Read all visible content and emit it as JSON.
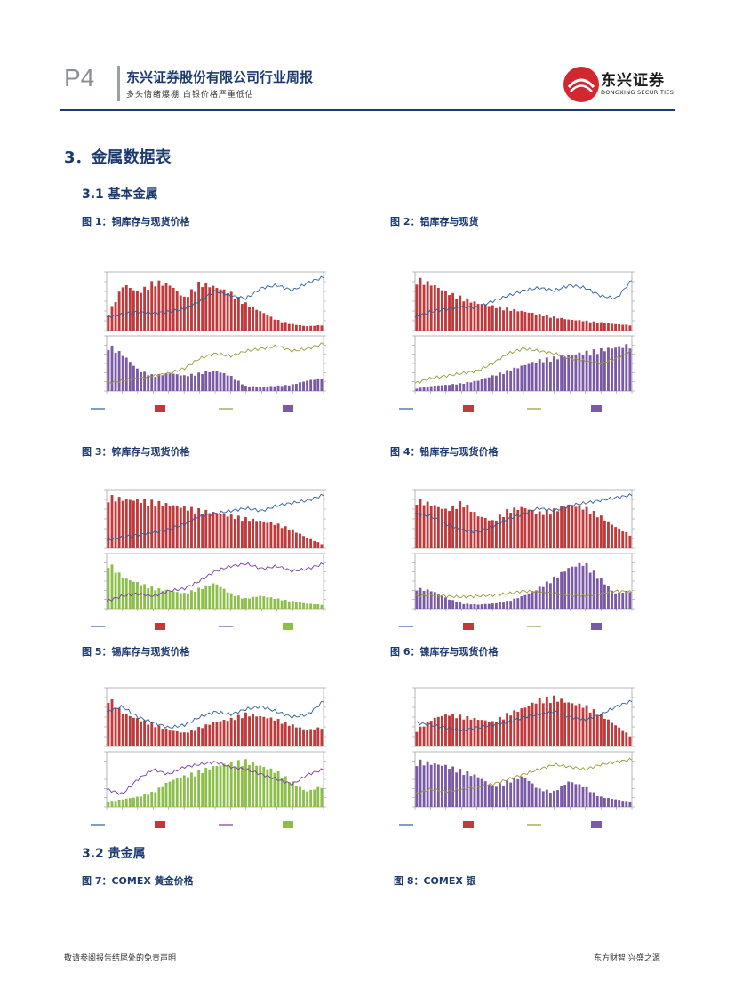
{
  "header": {
    "page_number": "P4",
    "company_title": "东兴证券股份有限公司行业周报",
    "subtitle": "多头情绪爆棚 白银价格严重低估",
    "logo_cn": "东兴证券",
    "logo_en": "DONGXING SECURITIES"
  },
  "sections": {
    "s3": "3．金属数据表",
    "s31": "3.1  基本金属",
    "s32": "3.2  贵金属"
  },
  "figures": {
    "f1": "图 1：铜库存与现货价格",
    "f2": "图 2：铝库存与现货",
    "f3": "图 3：锌库存与现货价格",
    "f4": "图 4：铅库存与现货价格",
    "f5": "图 5：锡库存与现货价格",
    "f6": "图 6：镍库存与现货价格",
    "f7": "图 7：COMEX 黄金价格",
    "f8": "图 8：COMEX 银"
  },
  "footer": {
    "disclaimer": "敬请参阅报告结尾处的免责声明",
    "slogan": "东方财智 兴盛之源"
  },
  "colors": {
    "navy": "#1c3a6e",
    "bar_red": "#c0393b",
    "bar_purple": "#7a5aa6",
    "bar_green": "#8cbf4a",
    "line_blue": "#2d5f9a",
    "line_olive": "#9a9a3a",
    "line_violet": "#7a3aa6",
    "logo_red": "#d0282e"
  },
  "chart_data": [
    {
      "type": "bar",
      "id": "f1",
      "top_values": [
        0.3,
        0.85,
        0.7,
        0.9,
        0.85,
        0.6,
        0.88,
        0.8,
        0.7,
        0.5,
        0.35,
        0.2,
        0.12,
        0.08,
        0.1
      ],
      "top_line": [
        0.2,
        0.25,
        0.3,
        0.28,
        0.3,
        0.35,
        0.5,
        0.7,
        0.6,
        0.55,
        0.75,
        0.8,
        0.7,
        0.85,
        0.95
      ],
      "bottom_values": [
        0.9,
        0.7,
        0.4,
        0.3,
        0.35,
        0.3,
        0.35,
        0.4,
        0.3,
        0.1,
        0.08,
        0.1,
        0.12,
        0.2,
        0.25
      ],
      "bottom_line": [
        0.1,
        0.15,
        0.2,
        0.25,
        0.3,
        0.4,
        0.6,
        0.7,
        0.65,
        0.75,
        0.8,
        0.85,
        0.75,
        0.8,
        0.9
      ],
      "top_color": "#c0393b",
      "bottom_color": "#7a5aa6",
      "bottom_line_color": "#9a9a3a"
    },
    {
      "type": "bar",
      "id": "f2",
      "top_values": [
        0.95,
        0.85,
        0.7,
        0.6,
        0.5,
        0.45,
        0.4,
        0.35,
        0.3,
        0.25,
        0.2,
        0.18,
        0.15,
        0.12,
        0.1
      ],
      "top_line": [
        0.2,
        0.3,
        0.35,
        0.4,
        0.38,
        0.5,
        0.6,
        0.7,
        0.75,
        0.7,
        0.8,
        0.75,
        0.6,
        0.55,
        0.9
      ],
      "bottom_values": [
        0.05,
        0.1,
        0.12,
        0.15,
        0.2,
        0.3,
        0.4,
        0.5,
        0.6,
        0.65,
        0.7,
        0.75,
        0.8,
        0.85,
        0.9
      ],
      "bottom_line": [
        0.1,
        0.2,
        0.25,
        0.3,
        0.35,
        0.5,
        0.7,
        0.8,
        0.75,
        0.7,
        0.6,
        0.55,
        0.5,
        0.6,
        0.75
      ],
      "top_color": "#c0393b",
      "bottom_color": "#7a5aa6",
      "bottom_line_color": "#9a9a3a"
    },
    {
      "type": "bar",
      "id": "f3",
      "top_values": [
        0.95,
        0.9,
        0.88,
        0.85,
        0.8,
        0.75,
        0.7,
        0.65,
        0.6,
        0.55,
        0.5,
        0.45,
        0.35,
        0.2,
        0.08
      ],
      "top_line": [
        0.1,
        0.15,
        0.2,
        0.25,
        0.3,
        0.4,
        0.55,
        0.6,
        0.65,
        0.7,
        0.65,
        0.75,
        0.8,
        0.85,
        0.95
      ],
      "bottom_values": [
        0.9,
        0.6,
        0.5,
        0.4,
        0.35,
        0.3,
        0.4,
        0.5,
        0.3,
        0.2,
        0.25,
        0.2,
        0.15,
        0.1,
        0.08
      ],
      "bottom_line": [
        0.1,
        0.2,
        0.25,
        0.2,
        0.3,
        0.35,
        0.5,
        0.7,
        0.8,
        0.85,
        0.75,
        0.8,
        0.7,
        0.75,
        0.85
      ],
      "top_color": "#c0393b",
      "bottom_color": "#8cbf4a",
      "bottom_line_color": "#7a3aa6"
    },
    {
      "type": "bar",
      "id": "f4",
      "top_values": [
        0.9,
        0.8,
        0.7,
        0.85,
        0.6,
        0.5,
        0.7,
        0.75,
        0.65,
        0.7,
        0.8,
        0.75,
        0.6,
        0.4,
        0.25
      ],
      "top_line": [
        0.6,
        0.55,
        0.4,
        0.3,
        0.25,
        0.35,
        0.5,
        0.6,
        0.7,
        0.65,
        0.75,
        0.8,
        0.85,
        0.9,
        0.95
      ],
      "bottom_values": [
        0.4,
        0.35,
        0.2,
        0.1,
        0.08,
        0.1,
        0.15,
        0.25,
        0.4,
        0.6,
        0.8,
        0.9,
        0.6,
        0.3,
        0.35
      ],
      "bottom_line": [
        0.2,
        0.22,
        0.2,
        0.18,
        0.2,
        0.22,
        0.25,
        0.3,
        0.28,
        0.25,
        0.22,
        0.2,
        0.25,
        0.3,
        0.28
      ],
      "top_color": "#c0393b",
      "bottom_color": "#7a5aa6",
      "bottom_line_color": "#9a9a3a"
    },
    {
      "type": "bar",
      "id": "f5",
      "top_values": [
        0.9,
        0.6,
        0.5,
        0.4,
        0.3,
        0.25,
        0.35,
        0.45,
        0.5,
        0.6,
        0.55,
        0.5,
        0.4,
        0.3,
        0.35
      ],
      "top_line": [
        0.6,
        0.7,
        0.5,
        0.4,
        0.3,
        0.35,
        0.5,
        0.6,
        0.55,
        0.65,
        0.7,
        0.6,
        0.5,
        0.55,
        0.8
      ],
      "bottom_values": [
        0.1,
        0.15,
        0.2,
        0.3,
        0.5,
        0.6,
        0.7,
        0.8,
        0.85,
        0.9,
        0.8,
        0.7,
        0.5,
        0.3,
        0.4
      ],
      "bottom_line": [
        0.3,
        0.2,
        0.5,
        0.7,
        0.6,
        0.75,
        0.8,
        0.85,
        0.75,
        0.7,
        0.6,
        0.5,
        0.4,
        0.6,
        0.7
      ],
      "top_color": "#c0393b",
      "bottom_color": "#8cbf4a",
      "bottom_line_color": "#7a3aa6"
    },
    {
      "type": "bar",
      "id": "f6",
      "top_values": [
        0.3,
        0.5,
        0.6,
        0.55,
        0.5,
        0.45,
        0.6,
        0.7,
        0.85,
        0.9,
        0.8,
        0.75,
        0.6,
        0.4,
        0.2
      ],
      "top_line": [
        0.4,
        0.35,
        0.3,
        0.25,
        0.3,
        0.35,
        0.4,
        0.5,
        0.55,
        0.6,
        0.5,
        0.45,
        0.55,
        0.7,
        0.8
      ],
      "bottom_values": [
        0.9,
        0.85,
        0.8,
        0.7,
        0.6,
        0.4,
        0.5,
        0.6,
        0.35,
        0.3,
        0.5,
        0.4,
        0.2,
        0.15,
        0.1
      ],
      "bottom_line": [
        0.2,
        0.3,
        0.25,
        0.3,
        0.35,
        0.4,
        0.5,
        0.6,
        0.7,
        0.8,
        0.75,
        0.7,
        0.8,
        0.85,
        0.9
      ],
      "top_color": "#c0393b",
      "bottom_color": "#7a5aa6",
      "bottom_line_color": "#9a9a3a"
    }
  ]
}
